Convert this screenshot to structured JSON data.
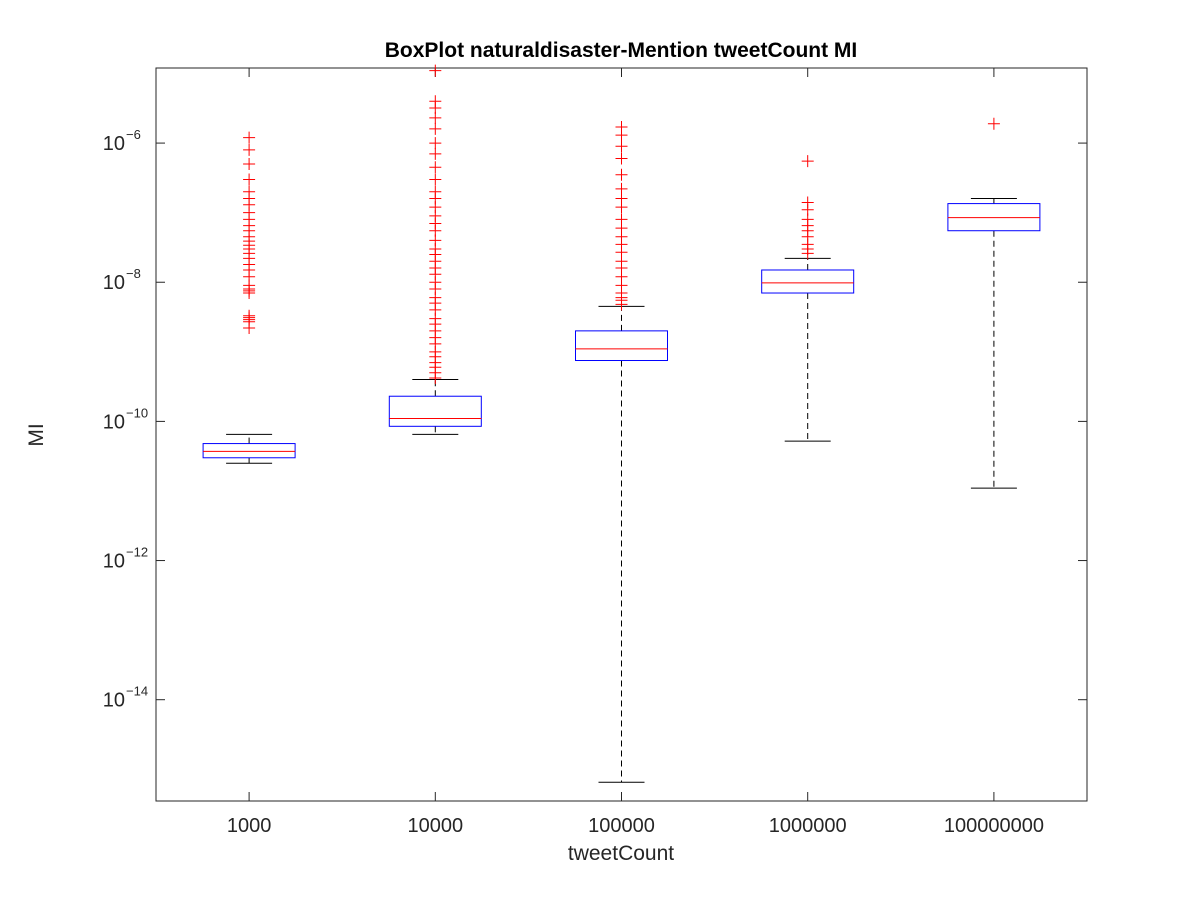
{
  "chart_data": {
    "type": "boxplot",
    "title": "BoxPlot naturaldisaster-Mention tweetCount MI",
    "xlabel": "tweetCount",
    "ylabel": "MI",
    "y_scale": "log",
    "ylim": [
      3.5e-16,
      1.2e-05
    ],
    "y_ticks": [
      {
        "base": "10",
        "exp": "−14",
        "value": 1e-14
      },
      {
        "base": "10",
        "exp": "−12",
        "value": 1e-12
      },
      {
        "base": "10",
        "exp": "−10",
        "value": 1e-10
      },
      {
        "base": "10",
        "exp": "−8",
        "value": 1e-08
      },
      {
        "base": "10",
        "exp": "−6",
        "value": 1e-06
      }
    ],
    "categories": [
      "1000",
      "10000",
      "100000",
      "1000000",
      "100000000"
    ],
    "box_color": "#0000ff",
    "median_color": "#ff0000",
    "whisker_color": "#000000",
    "outlier_color": "#ff0000",
    "outlier_marker": "+",
    "boxes": [
      {
        "category": "1000",
        "whisker_low": 2.5e-11,
        "q1": 3e-11,
        "median": 3.7e-11,
        "q3": 4.8e-11,
        "whisker_high": 6.5e-11,
        "outliers": [
          2.2e-09,
          2.7e-09,
          2.9e-09,
          3.1e-09,
          3.3e-09,
          7e-09,
          7.5e-09,
          8e-09,
          9e-09,
          1.2e-08,
          1.5e-08,
          1.8e-08,
          2.2e-08,
          2.6e-08,
          3e-08,
          3.4e-08,
          3.9e-08,
          4.5e-08,
          5.5e-08,
          6.5e-08,
          8e-08,
          1e-07,
          1.3e-07,
          1.6e-07,
          2e-07,
          3e-07,
          5e-07,
          8e-07,
          1.2e-06
        ]
      },
      {
        "category": "10000",
        "whisker_low": 6.5e-11,
        "q1": 8.5e-11,
        "median": 1.1e-10,
        "q3": 2.3e-10,
        "whisker_high": 4e-10,
        "outliers": [
          4.2e-10,
          5e-10,
          6e-10,
          7e-10,
          8.5e-10,
          1e-09,
          1.3e-09,
          1.6e-09,
          2e-09,
          2.5e-09,
          3e-09,
          4e-09,
          5e-09,
          6e-09,
          8e-09,
          1e-08,
          1.3e-08,
          1.6e-08,
          2e-08,
          2.5e-08,
          3e-08,
          4e-08,
          5.5e-08,
          7e-08,
          9e-08,
          1.2e-07,
          1.6e-07,
          2e-07,
          3e-07,
          4.5e-07,
          7e-07,
          1e-06,
          1.6e-06,
          2.3e-06,
          3.2e-06,
          4e-06,
          1.1e-05
        ]
      },
      {
        "category": "100000",
        "whisker_low": 6.5e-16,
        "q1": 7.5e-10,
        "median": 1.1e-09,
        "q3": 2e-09,
        "whisker_high": 4.5e-09,
        "outliers": [
          4.8e-09,
          5.5e-09,
          6e-09,
          7e-09,
          9e-09,
          1.2e-08,
          1.6e-08,
          2e-08,
          2.7e-08,
          3.5e-08,
          4.5e-08,
          6e-08,
          8e-08,
          1.2e-07,
          1.6e-07,
          2.2e-07,
          3.5e-07,
          6e-07,
          9e-07,
          1.3e-06,
          1.7e-06
        ]
      },
      {
        "category": "1000000",
        "whisker_low": 5.2e-11,
        "q1": 7e-09,
        "median": 9.8e-09,
        "q3": 1.5e-08,
        "whisker_high": 2.2e-08,
        "outliers": [
          2.6e-08,
          3e-08,
          3.5e-08,
          4.5e-08,
          5.5e-08,
          6.5e-08,
          8e-08,
          1.1e-07,
          1.4e-07,
          5.5e-07
        ]
      },
      {
        "category": "100000000",
        "whisker_low": 1.1e-11,
        "q1": 5.5e-08,
        "median": 8.5e-08,
        "q3": 1.35e-07,
        "whisker_high": 1.6e-07,
        "outliers": [
          1.9e-06
        ]
      }
    ]
  }
}
